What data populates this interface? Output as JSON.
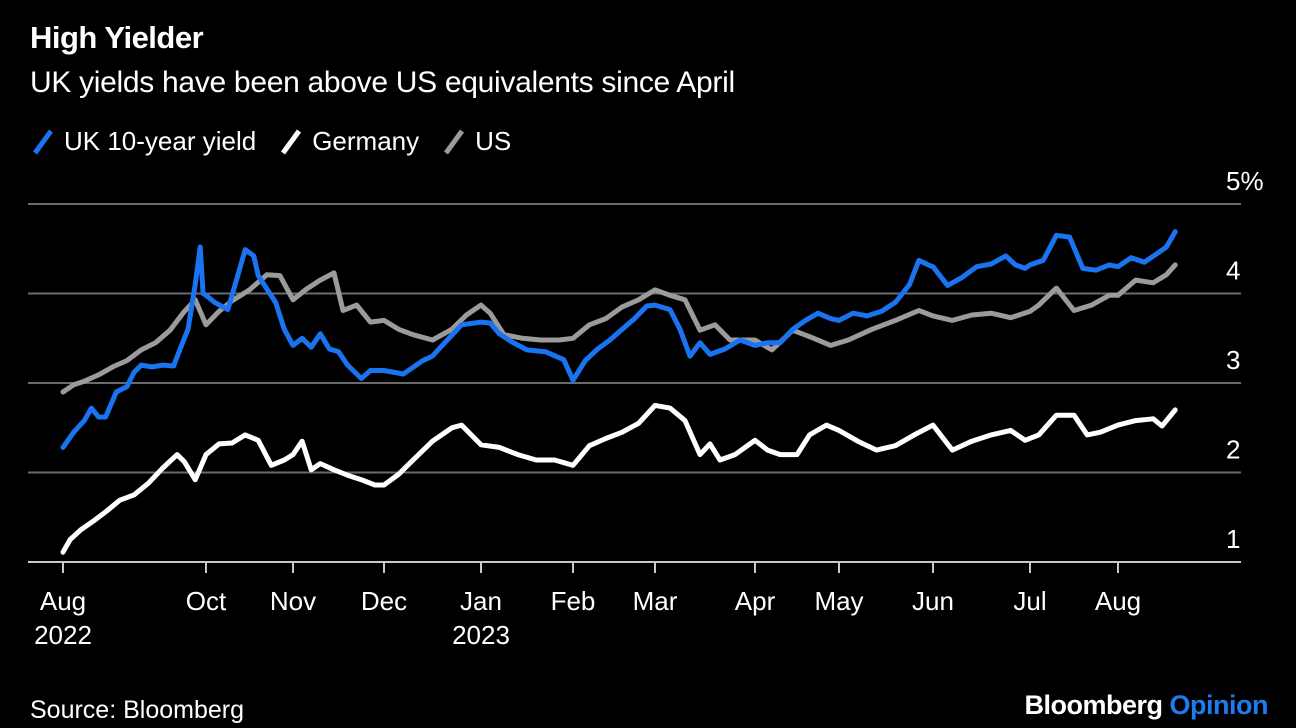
{
  "header": {
    "title": "High Yielder",
    "subtitle": "UK yields have been above US equivalents since April"
  },
  "legend": [
    {
      "label": "UK 10-year yield",
      "color": "#1a73f0"
    },
    {
      "label": "Germany",
      "color": "#ffffff"
    },
    {
      "label": "US",
      "color": "#9b9b9b"
    }
  ],
  "footer": {
    "source": "Source: Bloomberg",
    "brand_main": "Bloomberg",
    "brand_accent": "Opinion",
    "brand_accent_color": "#1e7bf0"
  },
  "chart_data": {
    "type": "line",
    "title": "High Yielder",
    "subtitle": "UK yields have been above US equivalents since April",
    "xlabel": "",
    "ylabel": "",
    "x_unit": "months since Aug 2022 (trading-time axis)",
    "x_ticks": [
      {
        "pos": 0,
        "label": "Aug",
        "sublabel": "2022"
      },
      {
        "pos": 2,
        "label": "Oct",
        "sublabel": ""
      },
      {
        "pos": 3,
        "label": "Nov",
        "sublabel": ""
      },
      {
        "pos": 4,
        "label": "Dec",
        "sublabel": ""
      },
      {
        "pos": 5,
        "label": "Jan",
        "sublabel": "2023"
      },
      {
        "pos": 6,
        "label": "Feb",
        "sublabel": ""
      },
      {
        "pos": 7,
        "label": "Mar",
        "sublabel": ""
      },
      {
        "pos": 8,
        "label": "Apr",
        "sublabel": ""
      },
      {
        "pos": 9,
        "label": "May",
        "sublabel": ""
      },
      {
        "pos": 10,
        "label": "Jun",
        "sublabel": ""
      },
      {
        "pos": 11,
        "label": "Jul",
        "sublabel": ""
      },
      {
        "pos": 12,
        "label": "Aug",
        "sublabel": ""
      }
    ],
    "y_ticks": [
      {
        "value": 1,
        "label": "1"
      },
      {
        "value": 2,
        "label": "2"
      },
      {
        "value": 3,
        "label": "3"
      },
      {
        "value": 4,
        "label": "4"
      },
      {
        "value": 5,
        "label": "5%"
      }
    ],
    "ylim": [
      1,
      5
    ],
    "xlim": [
      0,
      13.4
    ],
    "grid": true,
    "legend_position": "top-left",
    "series": [
      {
        "name": "UK 10-year yield",
        "color": "#1a73f0",
        "points": [
          [
            0.0,
            2.28
          ],
          [
            0.15,
            2.45
          ],
          [
            0.3,
            2.58
          ],
          [
            0.4,
            2.72
          ],
          [
            0.5,
            2.62
          ],
          [
            0.6,
            2.62
          ],
          [
            0.75,
            2.9
          ],
          [
            0.9,
            2.96
          ],
          [
            1.0,
            3.12
          ],
          [
            1.1,
            3.2
          ],
          [
            1.25,
            3.18
          ],
          [
            1.4,
            3.2
          ],
          [
            1.55,
            3.19
          ],
          [
            1.65,
            3.4
          ],
          [
            1.75,
            3.6
          ],
          [
            1.85,
            4.1
          ],
          [
            1.92,
            4.52
          ],
          [
            1.96,
            4.0
          ],
          [
            2.0,
            3.98
          ],
          [
            2.1,
            3.9
          ],
          [
            2.25,
            3.82
          ],
          [
            2.35,
            4.15
          ],
          [
            2.45,
            4.49
          ],
          [
            2.55,
            4.42
          ],
          [
            2.6,
            4.2
          ],
          [
            2.7,
            4.05
          ],
          [
            2.8,
            3.9
          ],
          [
            2.9,
            3.6
          ],
          [
            3.0,
            3.42
          ],
          [
            3.1,
            3.5
          ],
          [
            3.2,
            3.4
          ],
          [
            3.3,
            3.55
          ],
          [
            3.4,
            3.38
          ],
          [
            3.5,
            3.35
          ],
          [
            3.6,
            3.2
          ],
          [
            3.75,
            3.05
          ],
          [
            3.85,
            3.14
          ],
          [
            4.0,
            3.14
          ],
          [
            4.2,
            3.1
          ],
          [
            4.4,
            3.25
          ],
          [
            4.5,
            3.3
          ],
          [
            4.6,
            3.42
          ],
          [
            4.8,
            3.65
          ],
          [
            5.0,
            3.68
          ],
          [
            5.1,
            3.67
          ],
          [
            5.2,
            3.55
          ],
          [
            5.35,
            3.45
          ],
          [
            5.5,
            3.37
          ],
          [
            5.7,
            3.35
          ],
          [
            5.9,
            3.26
          ],
          [
            6.0,
            3.03
          ],
          [
            6.15,
            3.25
          ],
          [
            6.3,
            3.38
          ],
          [
            6.45,
            3.48
          ],
          [
            6.6,
            3.6
          ],
          [
            6.75,
            3.72
          ],
          [
            6.9,
            3.86
          ],
          [
            7.0,
            3.87
          ],
          [
            7.15,
            3.82
          ],
          [
            7.25,
            3.6
          ],
          [
            7.35,
            3.3
          ],
          [
            7.45,
            3.45
          ],
          [
            7.55,
            3.32
          ],
          [
            7.7,
            3.38
          ],
          [
            7.85,
            3.48
          ],
          [
            8.0,
            3.42
          ],
          [
            8.15,
            3.45
          ],
          [
            8.3,
            3.45
          ],
          [
            8.45,
            3.6
          ],
          [
            8.6,
            3.7
          ],
          [
            8.75,
            3.78
          ],
          [
            8.9,
            3.72
          ],
          [
            9.0,
            3.7
          ],
          [
            9.15,
            3.78
          ],
          [
            9.3,
            3.75
          ],
          [
            9.45,
            3.8
          ],
          [
            9.6,
            3.9
          ],
          [
            9.75,
            4.1
          ],
          [
            9.85,
            4.37
          ],
          [
            9.95,
            4.32
          ],
          [
            10.0,
            4.3
          ],
          [
            10.15,
            4.09
          ],
          [
            10.3,
            4.18
          ],
          [
            10.45,
            4.3
          ],
          [
            10.6,
            4.33
          ],
          [
            10.75,
            4.42
          ],
          [
            10.85,
            4.32
          ],
          [
            10.95,
            4.28
          ],
          [
            11.0,
            4.32
          ],
          [
            11.15,
            4.37
          ],
          [
            11.3,
            4.65
          ],
          [
            11.45,
            4.63
          ],
          [
            11.6,
            4.28
          ],
          [
            11.75,
            4.26
          ],
          [
            11.9,
            4.32
          ],
          [
            12.0,
            4.3
          ],
          [
            12.15,
            4.4
          ],
          [
            12.3,
            4.35
          ],
          [
            12.45,
            4.45
          ],
          [
            12.55,
            4.52
          ],
          [
            12.65,
            4.69
          ]
        ]
      },
      {
        "name": "Germany",
        "color": "#ffffff",
        "points": [
          [
            0.0,
            1.11
          ],
          [
            0.1,
            1.25
          ],
          [
            0.25,
            1.36
          ],
          [
            0.45,
            1.47
          ],
          [
            0.6,
            1.56
          ],
          [
            0.8,
            1.69
          ],
          [
            1.0,
            1.75
          ],
          [
            1.2,
            1.88
          ],
          [
            1.4,
            2.05
          ],
          [
            1.6,
            2.2
          ],
          [
            1.7,
            2.12
          ],
          [
            1.85,
            1.92
          ],
          [
            2.0,
            2.2
          ],
          [
            2.15,
            2.32
          ],
          [
            2.3,
            2.33
          ],
          [
            2.45,
            2.42
          ],
          [
            2.6,
            2.36
          ],
          [
            2.75,
            2.08
          ],
          [
            2.9,
            2.14
          ],
          [
            3.0,
            2.2
          ],
          [
            3.1,
            2.35
          ],
          [
            3.2,
            2.03
          ],
          [
            3.3,
            2.1
          ],
          [
            3.45,
            2.03
          ],
          [
            3.6,
            1.97
          ],
          [
            3.75,
            1.92
          ],
          [
            3.9,
            1.86
          ],
          [
            4.0,
            1.86
          ],
          [
            4.15,
            1.98
          ],
          [
            4.3,
            2.14
          ],
          [
            4.5,
            2.35
          ],
          [
            4.7,
            2.5
          ],
          [
            4.8,
            2.53
          ],
          [
            5.0,
            2.31
          ],
          [
            5.2,
            2.28
          ],
          [
            5.4,
            2.2
          ],
          [
            5.6,
            2.14
          ],
          [
            5.8,
            2.14
          ],
          [
            6.0,
            2.08
          ],
          [
            6.2,
            2.3
          ],
          [
            6.4,
            2.38
          ],
          [
            6.6,
            2.45
          ],
          [
            6.8,
            2.55
          ],
          [
            7.0,
            2.75
          ],
          [
            7.15,
            2.72
          ],
          [
            7.3,
            2.58
          ],
          [
            7.45,
            2.2
          ],
          [
            7.55,
            2.32
          ],
          [
            7.65,
            2.14
          ],
          [
            7.8,
            2.2
          ],
          [
            8.0,
            2.36
          ],
          [
            8.15,
            2.25
          ],
          [
            8.3,
            2.2
          ],
          [
            8.5,
            2.2
          ],
          [
            8.65,
            2.42
          ],
          [
            8.85,
            2.53
          ],
          [
            9.0,
            2.47
          ],
          [
            9.2,
            2.35
          ],
          [
            9.4,
            2.25
          ],
          [
            9.6,
            2.3
          ],
          [
            9.8,
            2.42
          ],
          [
            10.0,
            2.53
          ],
          [
            10.2,
            2.25
          ],
          [
            10.4,
            2.35
          ],
          [
            10.6,
            2.42
          ],
          [
            10.8,
            2.47
          ],
          [
            10.95,
            2.36
          ],
          [
            11.1,
            2.42
          ],
          [
            11.3,
            2.64
          ],
          [
            11.5,
            2.64
          ],
          [
            11.65,
            2.42
          ],
          [
            11.8,
            2.45
          ],
          [
            12.0,
            2.53
          ],
          [
            12.2,
            2.58
          ],
          [
            12.4,
            2.6
          ],
          [
            12.5,
            2.52
          ],
          [
            12.65,
            2.7
          ]
        ]
      },
      {
        "name": "US",
        "color": "#9b9b9b",
        "points": [
          [
            0.0,
            2.9
          ],
          [
            0.15,
            2.98
          ],
          [
            0.3,
            3.02
          ],
          [
            0.5,
            3.09
          ],
          [
            0.7,
            3.18
          ],
          [
            0.9,
            3.25
          ],
          [
            1.1,
            3.37
          ],
          [
            1.3,
            3.45
          ],
          [
            1.5,
            3.59
          ],
          [
            1.7,
            3.8
          ],
          [
            1.85,
            3.93
          ],
          [
            2.0,
            3.65
          ],
          [
            2.15,
            3.8
          ],
          [
            2.3,
            3.92
          ],
          [
            2.5,
            4.04
          ],
          [
            2.7,
            4.21
          ],
          [
            2.85,
            4.2
          ],
          [
            3.0,
            3.93
          ],
          [
            3.15,
            4.05
          ],
          [
            3.3,
            4.15
          ],
          [
            3.45,
            4.23
          ],
          [
            3.55,
            3.81
          ],
          [
            3.7,
            3.87
          ],
          [
            3.85,
            3.68
          ],
          [
            4.0,
            3.7
          ],
          [
            4.15,
            3.6
          ],
          [
            4.3,
            3.54
          ],
          [
            4.5,
            3.48
          ],
          [
            4.7,
            3.6
          ],
          [
            4.85,
            3.76
          ],
          [
            5.0,
            3.87
          ],
          [
            5.1,
            3.78
          ],
          [
            5.25,
            3.54
          ],
          [
            5.45,
            3.5
          ],
          [
            5.65,
            3.48
          ],
          [
            5.85,
            3.48
          ],
          [
            6.0,
            3.5
          ],
          [
            6.2,
            3.65
          ],
          [
            6.4,
            3.72
          ],
          [
            6.6,
            3.85
          ],
          [
            6.8,
            3.93
          ],
          [
            7.0,
            4.04
          ],
          [
            7.15,
            3.98
          ],
          [
            7.3,
            3.93
          ],
          [
            7.45,
            3.59
          ],
          [
            7.6,
            3.65
          ],
          [
            7.75,
            3.48
          ],
          [
            8.0,
            3.48
          ],
          [
            8.2,
            3.37
          ],
          [
            8.45,
            3.59
          ],
          [
            8.7,
            3.5
          ],
          [
            8.9,
            3.42
          ],
          [
            9.1,
            3.48
          ],
          [
            9.35,
            3.6
          ],
          [
            9.6,
            3.7
          ],
          [
            9.85,
            3.81
          ],
          [
            10.0,
            3.75
          ],
          [
            10.2,
            3.7
          ],
          [
            10.4,
            3.76
          ],
          [
            10.6,
            3.78
          ],
          [
            10.8,
            3.73
          ],
          [
            11.0,
            3.8
          ],
          [
            11.1,
            3.87
          ],
          [
            11.3,
            4.06
          ],
          [
            11.5,
            3.81
          ],
          [
            11.7,
            3.87
          ],
          [
            11.9,
            3.98
          ],
          [
            12.0,
            3.98
          ],
          [
            12.2,
            4.15
          ],
          [
            12.4,
            4.12
          ],
          [
            12.55,
            4.21
          ],
          [
            12.65,
            4.32
          ]
        ]
      }
    ]
  }
}
